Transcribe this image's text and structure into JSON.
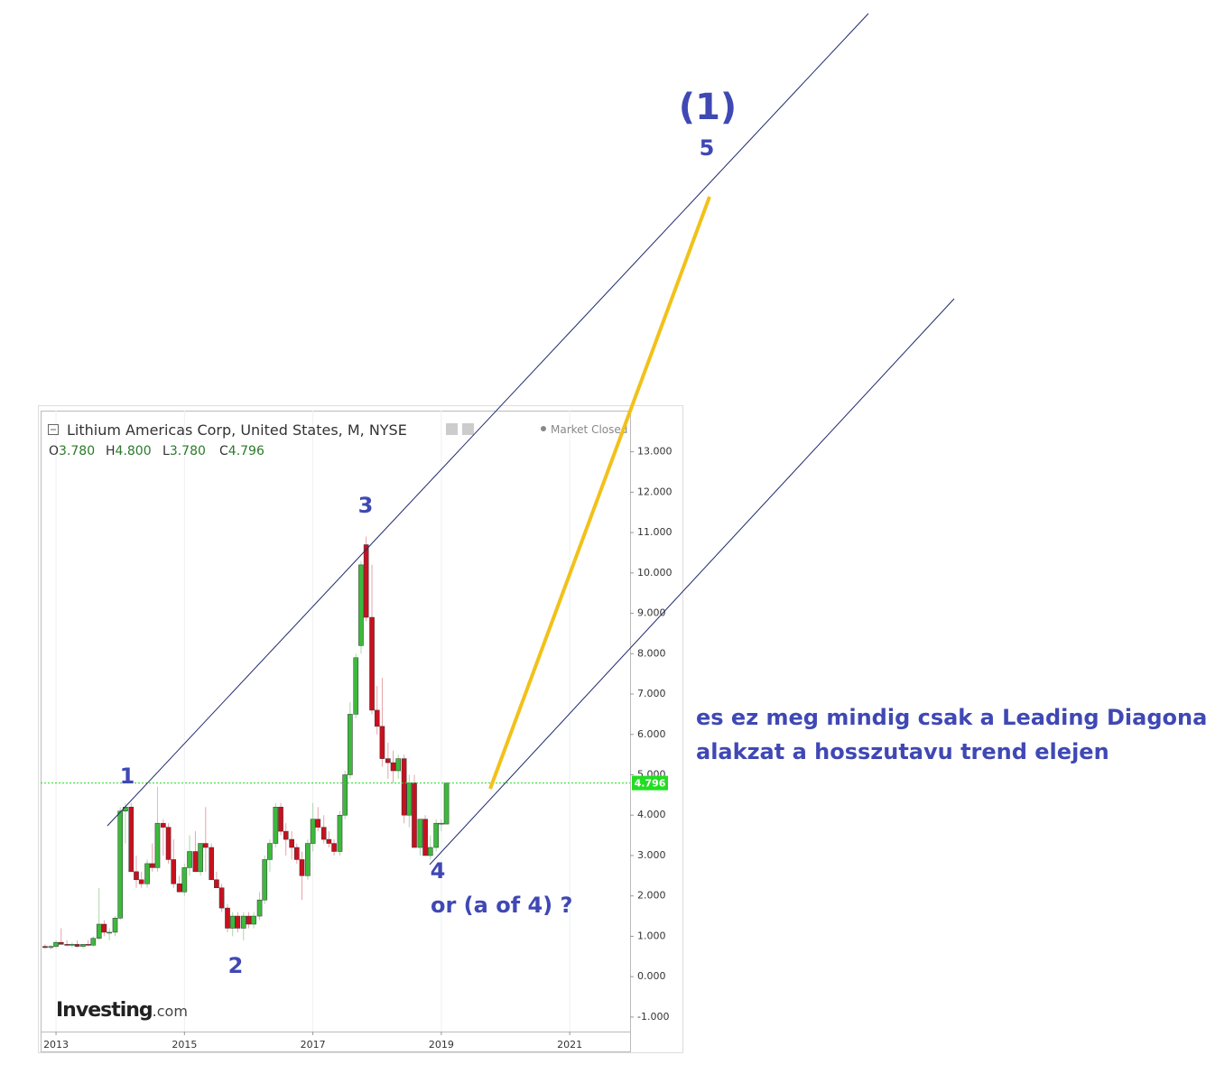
{
  "chart_data": {
    "type": "candlestick",
    "title": "Lithium Americas Corp, United States, M, NYSE",
    "status": "Market Closed",
    "ohlc_legend": [
      {
        "key": "O",
        "text": "3.780"
      },
      {
        "key": "H",
        "text": "4.800"
      },
      {
        "key": "L",
        "text": "3.780"
      },
      {
        "key": "C",
        "text": "4.796"
      }
    ],
    "last_price": {
      "value": 4.796,
      "label": "4.796"
    },
    "brand": [
      "Investing",
      ".com"
    ],
    "colors": {
      "up": "#3cb93c",
      "down": "#c8101e",
      "last": "#22dd22"
    },
    "grid": "x",
    "x": [
      2012.83,
      2012.92,
      2013.0,
      2013.08,
      2013.17,
      2013.25,
      2013.33,
      2013.42,
      2013.5,
      2013.58,
      2013.67,
      2013.75,
      2013.83,
      2013.92,
      2014.0,
      2014.08,
      2014.17,
      2014.25,
      2014.33,
      2014.42,
      2014.5,
      2014.58,
      2014.67,
      2014.75,
      2014.83,
      2014.92,
      2015.0,
      2015.08,
      2015.17,
      2015.25,
      2015.33,
      2015.42,
      2015.5,
      2015.58,
      2015.67,
      2015.75,
      2015.83,
      2015.92,
      2016.0,
      2016.08,
      2016.17,
      2016.25,
      2016.33,
      2016.42,
      2016.5,
      2016.58,
      2016.67,
      2016.75,
      2016.83,
      2016.92,
      2017.0,
      2017.08,
      2017.17,
      2017.25,
      2017.33,
      2017.42,
      2017.5,
      2017.58,
      2017.67,
      2017.75,
      2017.83,
      2017.92,
      2018.0,
      2018.08,
      2018.17,
      2018.25,
      2018.33,
      2018.42,
      2018.5,
      2018.58,
      2018.67,
      2018.75,
      2018.83,
      2018.92,
      2019.0,
      2019.08
    ],
    "open": [
      0.75,
      0.72,
      0.75,
      0.85,
      0.8,
      0.78,
      0.8,
      0.75,
      0.8,
      0.78,
      0.95,
      1.3,
      1.1,
      1.1,
      1.45,
      4.1,
      4.2,
      2.6,
      2.4,
      2.3,
      2.8,
      2.7,
      3.8,
      3.7,
      2.9,
      2.3,
      2.1,
      2.7,
      3.1,
      2.6,
      3.3,
      3.2,
      2.4,
      2.2,
      1.7,
      1.2,
      1.5,
      1.2,
      1.5,
      1.3,
      1.5,
      1.9,
      2.9,
      3.3,
      4.2,
      3.6,
      3.4,
      3.2,
      2.9,
      2.5,
      3.3,
      3.9,
      3.7,
      3.4,
      3.3,
      3.1,
      4.0,
      5.0,
      6.5,
      8.2,
      10.7,
      8.9,
      6.6,
      6.2,
      5.4,
      5.3,
      5.1,
      5.4,
      4.0,
      4.8,
      3.2,
      3.9,
      3.0,
      3.2,
      3.8,
      3.78
    ],
    "high": [
      0.8,
      0.78,
      0.9,
      1.2,
      0.9,
      0.85,
      0.9,
      0.8,
      0.9,
      1.0,
      2.2,
      1.4,
      1.2,
      1.5,
      4.2,
      4.3,
      4.3,
      3.0,
      2.6,
      2.9,
      3.3,
      4.7,
      3.9,
      3.8,
      3.4,
      2.5,
      2.8,
      3.5,
      3.6,
      3.3,
      4.2,
      3.3,
      2.6,
      2.3,
      1.8,
      1.6,
      1.6,
      1.6,
      1.6,
      1.6,
      2.1,
      3.0,
      3.4,
      4.3,
      4.3,
      3.8,
      3.6,
      3.3,
      3.1,
      3.4,
      4.3,
      4.2,
      4.0,
      3.6,
      3.4,
      4.1,
      5.1,
      6.8,
      8.0,
      10.3,
      10.9,
      10.2,
      7.2,
      7.4,
      5.8,
      5.6,
      5.5,
      5.5,
      5.0,
      5.0,
      3.9,
      4.0,
      3.5,
      3.9,
      3.9,
      4.8
    ],
    "low": [
      0.7,
      0.68,
      0.7,
      0.8,
      0.75,
      0.72,
      0.72,
      0.7,
      0.75,
      0.75,
      0.9,
      1.0,
      0.9,
      1.0,
      1.4,
      3.3,
      2.6,
      2.2,
      2.2,
      2.2,
      2.6,
      2.6,
      3.0,
      2.8,
      2.2,
      2.1,
      2.0,
      2.5,
      2.6,
      2.5,
      2.6,
      2.4,
      2.2,
      1.6,
      1.1,
      1.0,
      1.1,
      0.9,
      1.2,
      1.2,
      1.4,
      1.8,
      2.6,
      3.2,
      3.5,
      3.0,
      2.9,
      2.8,
      1.9,
      2.4,
      3.1,
      3.6,
      3.3,
      3.2,
      3.0,
      3.0,
      3.9,
      4.9,
      6.4,
      8.0,
      8.8,
      6.5,
      6.0,
      5.2,
      4.9,
      4.8,
      4.9,
      3.8,
      3.7,
      3.2,
      3.0,
      3.0,
      2.9,
      3.1,
      3.6,
      3.78
    ],
    "close": [
      0.72,
      0.75,
      0.85,
      0.8,
      0.78,
      0.8,
      0.75,
      0.8,
      0.78,
      0.95,
      1.3,
      1.1,
      1.1,
      1.45,
      4.1,
      4.2,
      2.6,
      2.4,
      2.3,
      2.8,
      2.7,
      3.8,
      3.7,
      2.9,
      2.3,
      2.1,
      2.7,
      3.1,
      2.6,
      3.3,
      3.2,
      2.4,
      2.2,
      1.7,
      1.2,
      1.5,
      1.2,
      1.5,
      1.3,
      1.5,
      1.9,
      2.9,
      3.3,
      4.2,
      3.6,
      3.4,
      3.2,
      2.9,
      2.5,
      3.3,
      3.9,
      3.7,
      3.4,
      3.3,
      3.1,
      4.0,
      5.0,
      6.5,
      7.9,
      10.2,
      8.9,
      6.6,
      6.2,
      5.4,
      5.3,
      5.1,
      5.4,
      4.0,
      4.8,
      3.2,
      3.9,
      3.0,
      3.2,
      3.8,
      3.8,
      4.796
    ],
    "xlim": [
      2012.76,
      2021.94
    ],
    "xticks": [
      2013,
      2015,
      2017,
      2019,
      2021
    ],
    "ylim": [
      -1.36,
      14.02
    ],
    "yticks": [
      {
        "value": 13,
        "label": "13.000"
      },
      {
        "value": 12,
        "label": "12.000"
      },
      {
        "value": 11,
        "label": "11.000"
      },
      {
        "value": 10,
        "label": "10.000"
      },
      {
        "value": 9,
        "label": "9.000"
      },
      {
        "value": 8,
        "label": "8.000"
      },
      {
        "value": 7,
        "label": "7.000"
      },
      {
        "value": 6,
        "label": "6.000"
      },
      {
        "value": 5,
        "label": "5.000"
      },
      {
        "value": 4,
        "label": "4.000"
      },
      {
        "value": 3,
        "label": "3.000"
      },
      {
        "value": 2,
        "label": "2.000"
      },
      {
        "value": 1,
        "label": "1.000"
      },
      {
        "value": 0,
        "label": "0.000"
      },
      {
        "value": -1,
        "label": "-1.000"
      }
    ],
    "annotations": {
      "wave_1": "1",
      "wave_2": "2",
      "wave_3": "3",
      "wave_4": "4",
      "wave_4_alt": "or (a of 4) ?",
      "wave_big_1": "(1)",
      "wave_5": "5",
      "comment": [
        "es ez meg mindig csak a Leading Diagonal",
        "alakzat a hosszutavu trend elejen"
      ]
    }
  }
}
